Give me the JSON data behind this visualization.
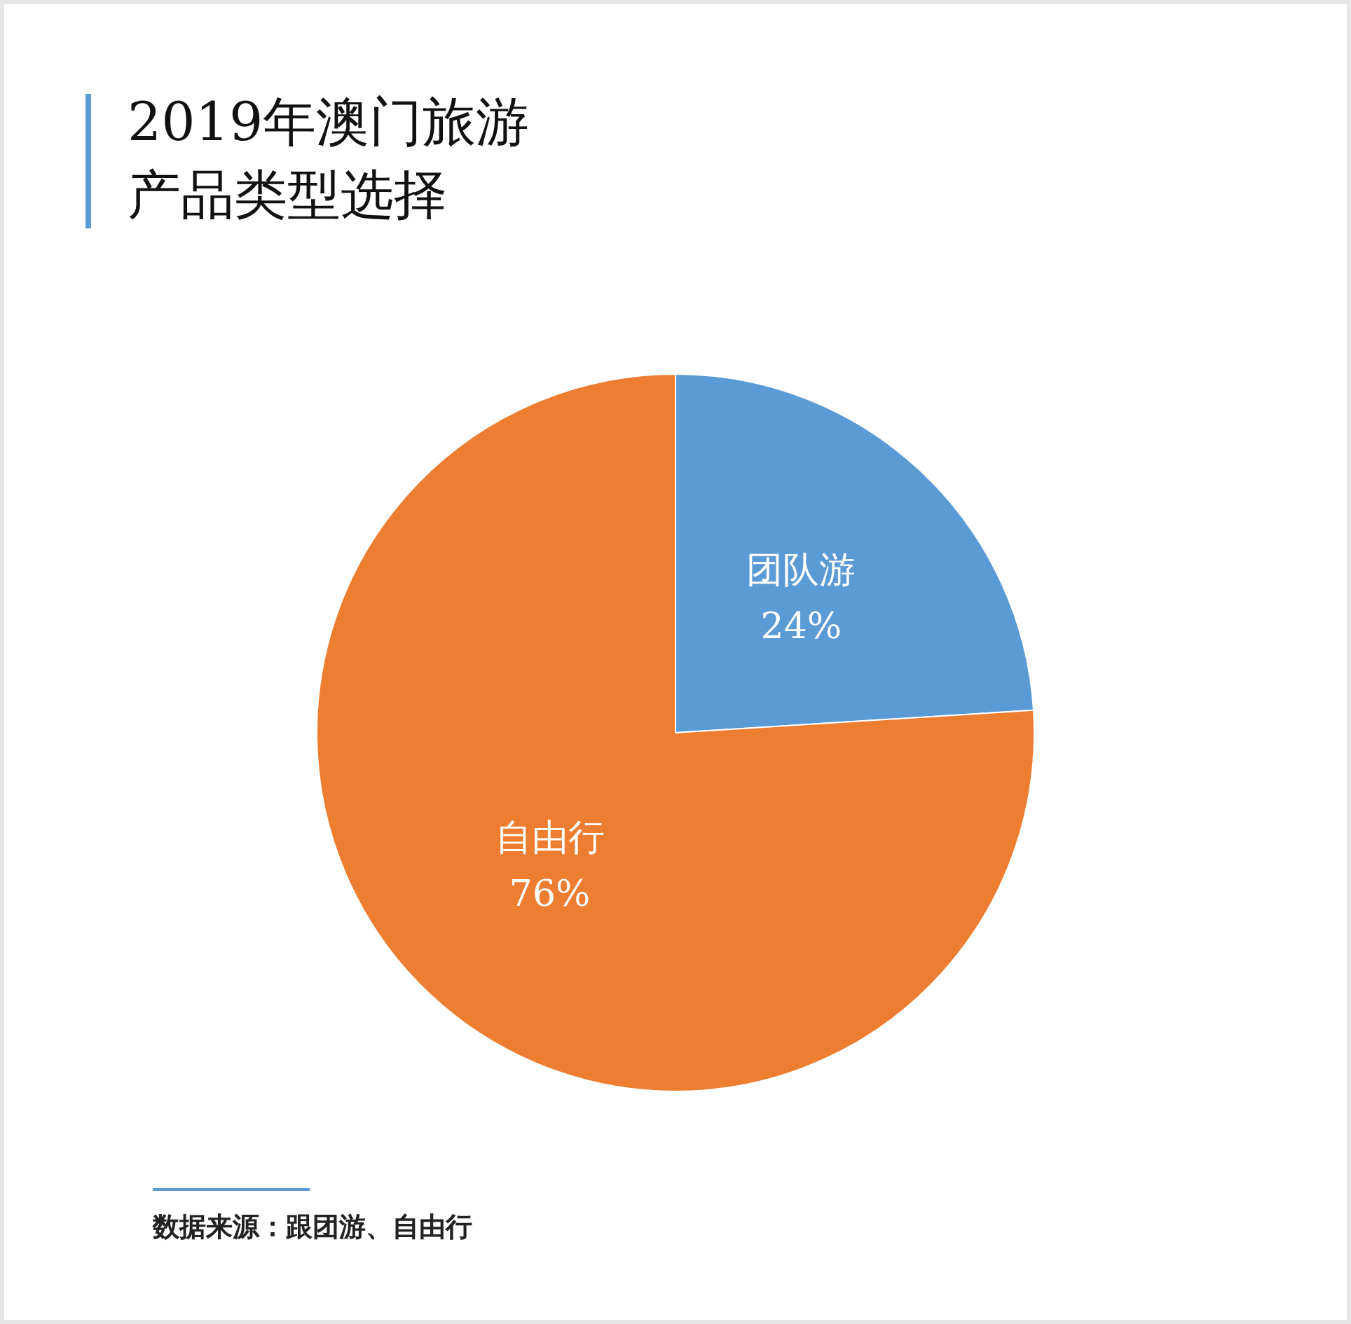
{
  "chart_data": {
    "type": "pie",
    "title": "2019年澳门旅游产品类型选择",
    "categories": [
      "团队游",
      "自由行"
    ],
    "values": [
      24,
      76
    ],
    "colors": [
      "#5b9bd5",
      "#ed7d31"
    ],
    "value_labels": [
      "24%",
      "76%"
    ],
    "annotations": [
      "数据来源：跟团游、自由行"
    ]
  }
}
